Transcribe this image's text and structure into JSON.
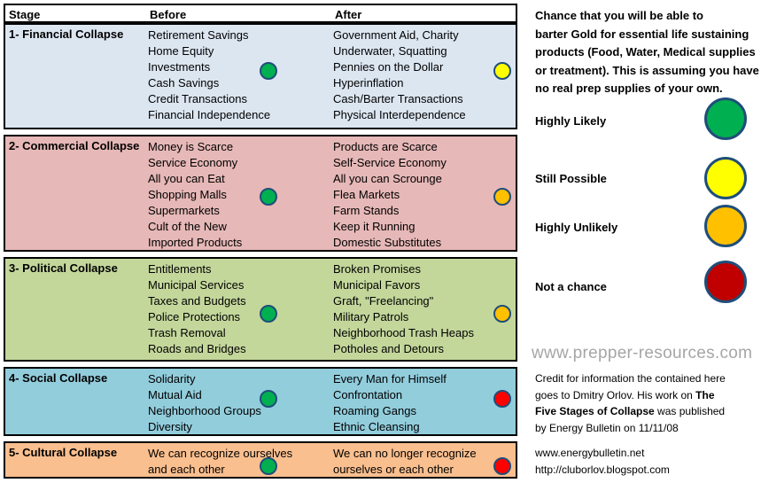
{
  "header": {
    "stage": "Stage",
    "before": "Before",
    "after": "After"
  },
  "stages": [
    {
      "name": "1- Financial Collapse",
      "bg": "#dce6f1",
      "before": [
        "Retirement Savings",
        "Home Equity",
        "Investments",
        "Cash Savings",
        "Credit Transactions",
        "Financial Independence"
      ],
      "after": [
        "Government Aid, Charity",
        "Underwater, Squatting",
        "Pennies on the Dollar",
        "Hyperinflation",
        "Cash/Barter Transactions",
        "Physical Interdependence"
      ],
      "before_color": "#00b050",
      "after_color": "#ffff00"
    },
    {
      "name": "2- Commercial Collapse",
      "bg": "#e6b8b7",
      "before": [
        "Money is Scarce",
        "Service Economy",
        "All you can Eat",
        "Shopping Malls",
        "Supermarkets",
        "Cult of the New",
        "Imported Products"
      ],
      "after": [
        "Products are Scarce",
        "Self-Service Economy",
        "All you can Scrounge",
        "Flea Markets",
        "Farm Stands",
        "Keep it Running",
        "Domestic Substitutes"
      ],
      "before_color": "#00b050",
      "after_color": "#ffc000"
    },
    {
      "name": "3- Political Collapse",
      "bg": "#c4d79b",
      "before": [
        "Entitlements",
        "Municipal Services",
        "Taxes and Budgets",
        "Police Protections",
        "Trash Removal",
        "Roads and Bridges"
      ],
      "after": [
        "Broken Promises",
        "Municipal Favors",
        "Graft, \"Freelancing\"",
        "Military Patrols",
        "Neighborhood Trash Heaps",
        "Potholes and Detours"
      ],
      "before_color": "#00b050",
      "after_color": "#ffc000"
    },
    {
      "name": "4- Social Collapse",
      "bg": "#92cddc",
      "before": [
        "Solidarity",
        "Mutual Aid",
        "Neighborhood Groups",
        "Diversity"
      ],
      "after": [
        "Every Man for Himself",
        "Confrontation",
        "Roaming Gangs",
        "Ethnic Cleansing"
      ],
      "before_color": "#00b050",
      "after_color": "#ff0000"
    },
    {
      "name": "5- Cultural Collapse",
      "bg": "#fabf8f",
      "before": [
        "We can recognize ourselves",
        "and each other"
      ],
      "after": [
        "We can no longer recognize",
        "ourselves or each other"
      ],
      "before_color": "#00b050",
      "after_color": "#ff0000"
    }
  ],
  "intro": [
    "Chance that you will be able to",
    "barter Gold for essential life sustaining",
    "products (Food, Water, Medical supplies",
    "or treatment).  This is assuming you have",
    "no real prep supplies of your own."
  ],
  "legend": [
    {
      "label": "Highly Likely",
      "color": "#00b050"
    },
    {
      "label": "Still Possible",
      "color": "#ffff00"
    },
    {
      "label": "Highly Unlikely",
      "color": "#ffc000"
    },
    {
      "label": "Not a chance",
      "color": "#c00000"
    }
  ],
  "watermark": "www.prepper-resources.com",
  "credit": {
    "line1": "Credit for information the contained here",
    "line2_pre": "goes to Dmitry Orlov.  His work on ",
    "line2_bold": "The",
    "line3_bold": "Five Stages of Collapse",
    "line3_post": " was published",
    "line4": "by Energy Bulletin on 11/11/08"
  },
  "links": [
    "www.energybulletin.net",
    "http://cluborlov.blogspot.com"
  ]
}
